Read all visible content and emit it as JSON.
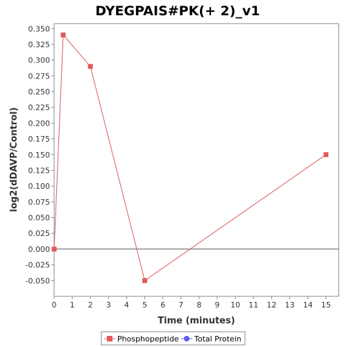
{
  "chart_data": {
    "type": "line",
    "title": "DYEGPAIS#PK(+ 2)_v1",
    "xlabel": "Time (minutes)",
    "ylabel": "log2(dDAVP/Control)",
    "xlim": [
      0,
      15.7
    ],
    "ylim": [
      -0.075,
      0.358
    ],
    "xticks": [
      0,
      1,
      2,
      3,
      4,
      5,
      6,
      7,
      8,
      9,
      10,
      11,
      12,
      13,
      14,
      15
    ],
    "yticks": [
      -0.05,
      -0.025,
      0,
      0.025,
      0.05,
      0.075,
      0.1,
      0.125,
      0.15,
      0.175,
      0.2,
      0.225,
      0.25,
      0.275,
      0.3,
      0.325,
      0.35
    ],
    "ytick_labels": [
      "-0.050",
      "-0.025",
      "0.000",
      "0.025",
      "0.050",
      "0.075",
      "0.100",
      "0.125",
      "0.150",
      "0.175",
      "0.200",
      "0.225",
      "0.250",
      "0.275",
      "0.300",
      "0.325",
      "0.350"
    ],
    "zero_line": true,
    "grid": false,
    "legend_position": "bottom",
    "series": [
      {
        "name": "Phosphopeptide",
        "color": "#e05a5a",
        "marker": "square",
        "x": [
          0,
          0.5,
          2,
          5,
          15
        ],
        "y": [
          0.0,
          0.34,
          0.29,
          -0.05,
          0.15
        ]
      },
      {
        "name": "Total Protein",
        "color": "#5b5bef",
        "marker": "circle",
        "x": [],
        "y": []
      }
    ]
  }
}
